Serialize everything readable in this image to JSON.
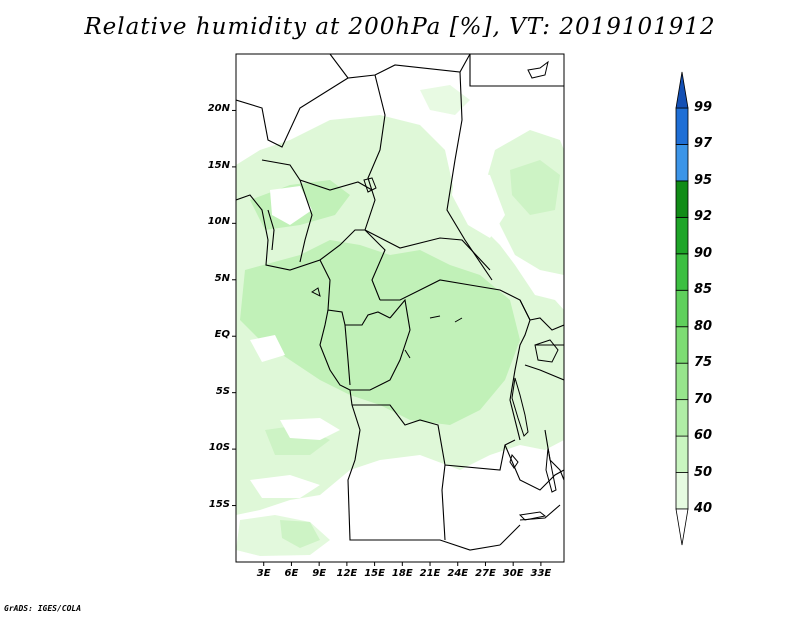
{
  "title": "Relative humidity at 200hPa [%], VT: 2019101912",
  "credit": "GrADS: IGES/COLA",
  "map": {
    "lon_range": [
      0,
      35.5
    ],
    "lat_range": [
      -20,
      25
    ],
    "lat_ticks": [
      {
        "value": 20,
        "label": "20N"
      },
      {
        "value": 15,
        "label": "15N"
      },
      {
        "value": 10,
        "label": "10N"
      },
      {
        "value": 5,
        "label": "5N"
      },
      {
        "value": 0,
        "label": "EQ"
      },
      {
        "value": -5,
        "label": "5S"
      },
      {
        "value": -10,
        "label": "10S"
      },
      {
        "value": -15,
        "label": "15S"
      }
    ],
    "lon_ticks": [
      {
        "value": 3,
        "label": "3E"
      },
      {
        "value": 6,
        "label": "6E"
      },
      {
        "value": 9,
        "label": "9E"
      },
      {
        "value": 12,
        "label": "12E"
      },
      {
        "value": 15,
        "label": "15E"
      },
      {
        "value": 18,
        "label": "18E"
      },
      {
        "value": 21,
        "label": "21E"
      },
      {
        "value": 24,
        "label": "24E"
      },
      {
        "value": 27,
        "label": "27E"
      },
      {
        "value": 30,
        "label": "30E"
      },
      {
        "value": 33,
        "label": "33E"
      }
    ]
  },
  "colorbar": {
    "levels": [
      "40",
      "50",
      "60",
      "70",
      "75",
      "80",
      "85",
      "90",
      "92",
      "95",
      "97",
      "99"
    ],
    "colors": [
      "#ffffff",
      "#e6fbe1",
      "#c9f5c0",
      "#b0eda6",
      "#97e58c",
      "#7ddc73",
      "#5fd05c",
      "#3cbf41",
      "#1ea528",
      "#118c17",
      "#3c95e8",
      "#1f6fd6",
      "#1450b4"
    ]
  },
  "colors": {
    "light": "#dff8d8",
    "medium": "#c1f1b8",
    "border": "#000000"
  }
}
